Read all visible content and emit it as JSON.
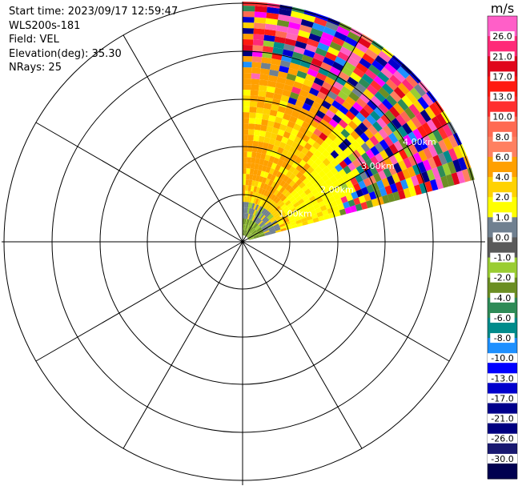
{
  "info": {
    "start_time": "Start time: 2023/09/17 12:59:47",
    "instrument": "WLS200s-181",
    "field": "Field: VEL",
    "elevation": "Elevation(deg): 35.30",
    "nrays": "NRays: 25"
  },
  "chart_data": {
    "type": "heatmap",
    "projection": "polar-ppi",
    "grid": true,
    "range_ring_labels": [
      "1.00km",
      "2.00km",
      "3.00km",
      "4.00km"
    ],
    "sector_deg": [
      0,
      75
    ],
    "colorbar": {
      "unit": "m/s",
      "placement": "right",
      "ticks": [
        "26.0",
        "21.0",
        "17.0",
        "13.0",
        "10.0",
        "8.0",
        "6.0",
        "4.0",
        "2.0",
        "1.0",
        "0.0",
        "-1.0",
        "-2.0",
        "-4.0",
        "-6.0",
        "-8.0",
        "-10.0",
        "-13.0",
        "-17.0",
        "-21.0",
        "-26.0",
        "-30.0"
      ],
      "colors": [
        "#ff5fc8",
        "#ff2a78",
        "#e0061b",
        "#ff1a10",
        "#ff2f2f",
        "#ff6a52",
        "#ff8060",
        "#ffa000",
        "#ffd200",
        "#ffff00",
        "#708090",
        "#5a5a5a",
        "#9acd32",
        "#6b8e23",
        "#2e8b57",
        "#008b8b",
        "#1e90ff",
        "#0000ff",
        "#0000cd",
        "#00008b",
        "#000080",
        "#191970",
        "#000050"
      ]
    }
  }
}
